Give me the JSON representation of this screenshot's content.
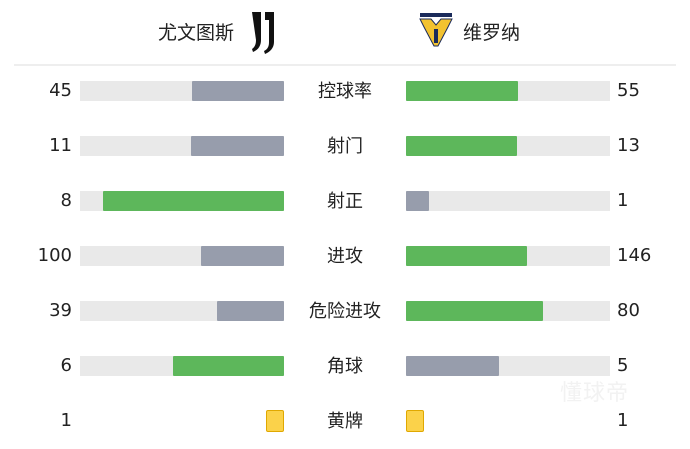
{
  "home": {
    "name": "尤文图斯",
    "logo": "juventus-logo"
  },
  "away": {
    "name": "维罗纳",
    "logo": "verona-logo"
  },
  "colors": {
    "leader": "#5db75b",
    "trailer": "#979dac",
    "bar_bg": "#e9e9e9",
    "card": "#fbd24a"
  },
  "stats": [
    {
      "label": "控球率",
      "home": "45",
      "away": "55",
      "type": "bar"
    },
    {
      "label": "射门",
      "home": "11",
      "away": "13",
      "type": "bar"
    },
    {
      "label": "射正",
      "home": "8",
      "away": "1",
      "type": "bar"
    },
    {
      "label": "进攻",
      "home": "100",
      "away": "146",
      "type": "bar"
    },
    {
      "label": "危险进攻",
      "home": "39",
      "away": "80",
      "type": "bar"
    },
    {
      "label": "角球",
      "home": "6",
      "away": "5",
      "type": "bar"
    },
    {
      "label": "黄牌",
      "home": "1",
      "away": "1",
      "type": "card"
    }
  ],
  "watermark": "懂球帝"
}
